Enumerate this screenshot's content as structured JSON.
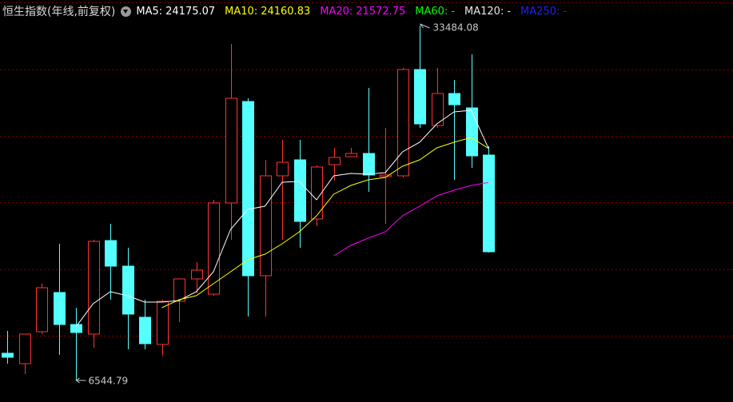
{
  "chart_data": {
    "type": "candlestick",
    "title": "恒生指数(年线,前复权)",
    "open": [
      8609,
      7820,
      10248,
      13220,
      10793,
      10066,
      17164,
      15222,
      11340,
      9277,
      12553,
      14251,
      13099,
      20015,
      27720,
      14494,
      22078,
      23291,
      18802,
      22927,
      23534,
      23776,
      22018,
      22078,
      30147,
      25900,
      28327,
      27234,
      23655
    ],
    "high": [
      10308,
      10066,
      13887,
      16922,
      12067,
      17224,
      18438,
      16618,
      12674,
      12674,
      14251,
      15526,
      20258,
      32088,
      27963,
      23291,
      24808,
      24808,
      22867,
      24201,
      24201,
      28752,
      25718,
      30268,
      33484.08,
      30268,
      29358,
      31300,
      24322
    ],
    "low": [
      7820,
      7031,
      10066,
      8488,
      6544.79,
      9034,
      12674,
      8913,
      8913,
      8427,
      10975,
      13159,
      12978,
      17224,
      11402,
      11402,
      17224,
      16618,
      18256,
      21714,
      23534,
      20864,
      18438,
      21957,
      25718,
      25718,
      21775,
      22685,
      16254
    ],
    "close": [
      8306,
      10066,
      13584,
      10793,
      10187,
      17104,
      15222,
      11582,
      9337,
      12553,
      14251,
      14919,
      20015,
      27963,
      14494,
      22078,
      23109,
      18620,
      22746,
      23473,
      23776,
      22139,
      22139,
      30147,
      26021,
      28327,
      27477,
      23595,
      16314
    ],
    "up_color": "#ff3232",
    "down_color": "#54ffff",
    "ylim": [
      4908,
      35425
    ],
    "series": [
      {
        "name": "MA5:",
        "color": "#ffffff",
        "values": [
          null,
          null,
          null,
          null,
          10614,
          12371,
          13281,
          12978,
          12492,
          12492,
          12614,
          13281,
          14797,
          18013,
          19529,
          19772,
          21592,
          21653,
          20258,
          22078,
          22260,
          22199,
          22320,
          23898,
          24626,
          26021,
          26931,
          27052,
          24175.07
        ]
      },
      {
        "name": "MA10:",
        "color": "#ffff00",
        "values": [
          null,
          null,
          null,
          null,
          null,
          null,
          null,
          null,
          null,
          12067,
          12674,
          12978,
          13887,
          14797,
          15707,
          16132,
          16921,
          17831,
          19044,
          20683,
          21350,
          21775,
          21957,
          22806,
          23291,
          24201,
          24626,
          24990,
          24160.83
        ]
      },
      {
        "name": "MA20:",
        "color": "#ff00ff",
        "values": [
          null,
          null,
          null,
          null,
          null,
          null,
          null,
          null,
          null,
          null,
          null,
          null,
          null,
          null,
          null,
          null,
          null,
          null,
          null,
          16011,
          16800,
          17346,
          17831,
          19044,
          19772,
          20561,
          20986,
          21350,
          21572.75
        ]
      },
      {
        "name": "MA60:",
        "color": "#00ff00",
        "latest_label": "-",
        "values": [
          null,
          null,
          null,
          null,
          null,
          null,
          null,
          null,
          null,
          null,
          null,
          null,
          null,
          null,
          null,
          null,
          null,
          null,
          null,
          null,
          null,
          null,
          null,
          null,
          null,
          null,
          null,
          null,
          null
        ]
      },
      {
        "name": "MA120:",
        "color": "#e8e8e8",
        "latest_label": "-",
        "values": [
          null,
          null,
          null,
          null,
          null,
          null,
          null,
          null,
          null,
          null,
          null,
          null,
          null,
          null,
          null,
          null,
          null,
          null,
          null,
          null,
          null,
          null,
          null,
          null,
          null,
          null,
          null,
          null,
          null
        ]
      },
      {
        "name": "MA250:",
        "color": "#2020ff",
        "latest_label": "-",
        "values": [
          null,
          null,
          null,
          null,
          null,
          null,
          null,
          null,
          null,
          null,
          null,
          null,
          null,
          null,
          null,
          null,
          null,
          null,
          null,
          null,
          null,
          null,
          null,
          null,
          null,
          null,
          null,
          null,
          null
        ]
      }
    ]
  }
}
